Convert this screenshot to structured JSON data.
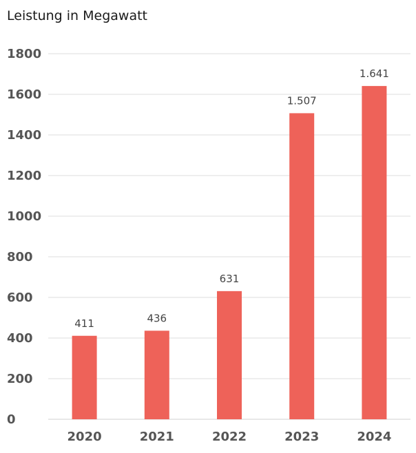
{
  "chart_data": {
    "type": "bar",
    "title": "Leistung in Megawatt",
    "categories": [
      "2020",
      "2021",
      "2022",
      "2023",
      "2024"
    ],
    "values": [
      411,
      436,
      631,
      1507,
      1641
    ],
    "data_labels": [
      "411",
      "436",
      "631",
      "1.507",
      "1.641"
    ],
    "ylim": [
      0,
      1800
    ],
    "yticks": [
      "0",
      "200",
      "400",
      "600",
      "800",
      "1000",
      "1200",
      "1400",
      "1600",
      "1800"
    ],
    "grid": true,
    "colors": {
      "bar": "#ee6259"
    }
  }
}
